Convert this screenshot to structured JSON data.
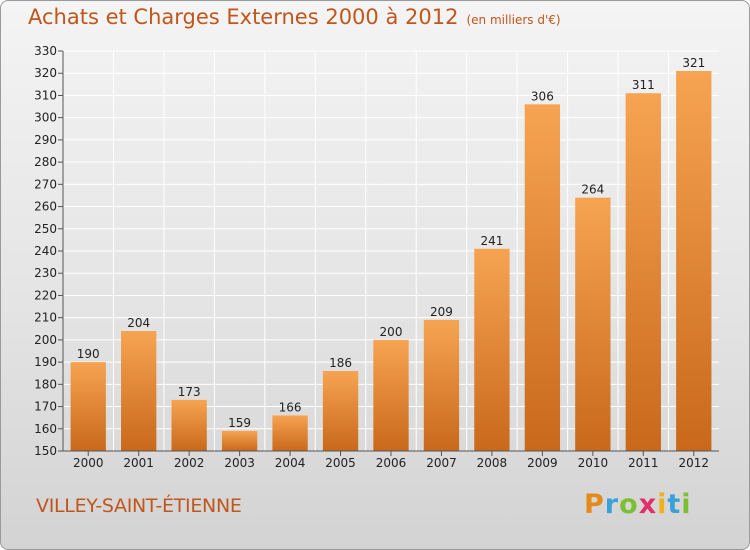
{
  "chart_data": {
    "type": "bar",
    "title": "Achats et Charges Externes 2000 à 2012",
    "unit_note": "(en milliers d'€)",
    "categories": [
      "2000",
      "2001",
      "2002",
      "2003",
      "2004",
      "2005",
      "2006",
      "2007",
      "2008",
      "2009",
      "2010",
      "2011",
      "2012"
    ],
    "values": [
      190,
      204,
      173,
      159,
      166,
      186,
      200,
      209,
      241,
      306,
      264,
      311,
      321
    ],
    "ylim": [
      150,
      330
    ],
    "yticks": [
      150,
      160,
      170,
      180,
      190,
      200,
      210,
      220,
      230,
      240,
      250,
      260,
      270,
      280,
      290,
      300,
      310,
      320,
      330
    ],
    "grid": true,
    "bar_color_light": "#f6a452",
    "bar_color_dark": "#c9681b"
  },
  "commune": "VILLEY-SAINT-ÉTIENNE",
  "logo": {
    "letters": [
      "P",
      "r",
      "o",
      "x",
      "i",
      "t",
      "i"
    ]
  }
}
